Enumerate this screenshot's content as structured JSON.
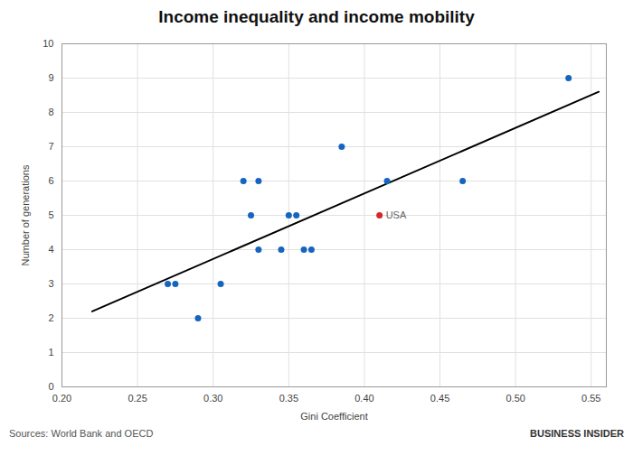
{
  "chart_data": {
    "type": "scatter",
    "title": "Income inequality and income mobility",
    "xlabel": "Gini Coefficient",
    "ylabel": "Number of generations",
    "xlim": [
      0.2,
      0.56
    ],
    "ylim": [
      0,
      10
    ],
    "xticks": [
      0.2,
      0.25,
      0.3,
      0.35,
      0.4,
      0.45,
      0.5,
      0.55
    ],
    "yticks": [
      0,
      1,
      2,
      3,
      4,
      5,
      6,
      7,
      8,
      9,
      10
    ],
    "grid": true,
    "series": [
      {
        "type": "line",
        "color": "#000000",
        "x": [
          0.22,
          0.555
        ],
        "values": [
          2.2,
          8.6
        ]
      },
      {
        "type": "scatter",
        "color": "#1565c0",
        "x": [
          0.27,
          0.275,
          0.29,
          0.305,
          0.32,
          0.325,
          0.33,
          0.33,
          0.345,
          0.35,
          0.355,
          0.36,
          0.365,
          0.385,
          0.415,
          0.465,
          0.535
        ],
        "values": [
          3,
          3,
          2,
          3,
          6,
          5,
          6,
          4,
          4,
          5,
          5,
          4,
          4,
          7,
          6,
          6,
          9
        ]
      },
      {
        "type": "scatter",
        "color": "#d62728",
        "x": [
          0.41
        ],
        "values": [
          5
        ]
      }
    ],
    "annotations": [
      {
        "text": "USA",
        "x": 0.41,
        "y": 5
      },
      {
        "text": "Sources: World Bank and OECD"
      },
      {
        "text": "BUSINESS INSIDER"
      }
    ]
  }
}
